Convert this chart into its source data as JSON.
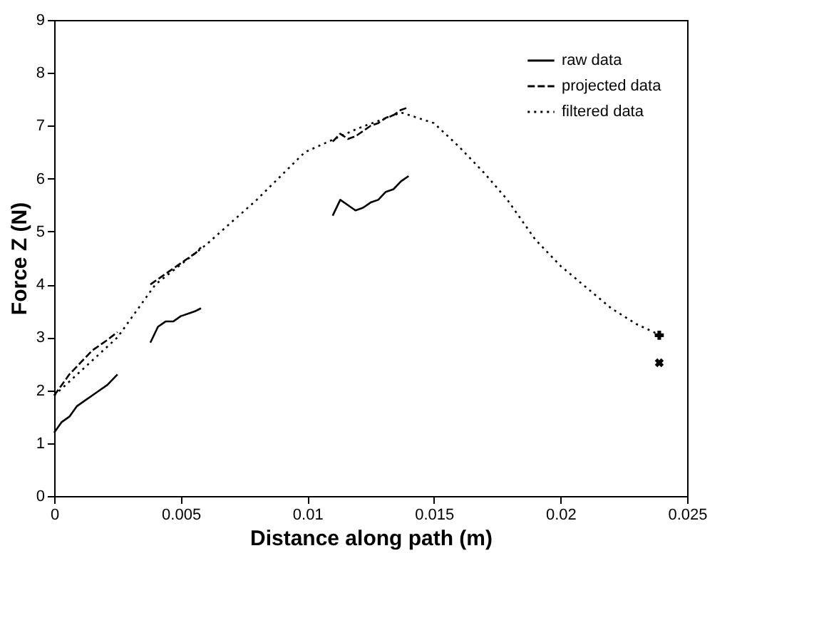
{
  "chart_data": {
    "type": "line",
    "xlabel": "Distance along path (m)",
    "ylabel": "Force Z (N)",
    "xlim": [
      0,
      0.025
    ],
    "ylim": [
      0,
      9
    ],
    "xticks": [
      0,
      0.005,
      0.01,
      0.015,
      0.02,
      0.025
    ],
    "yticks": [
      0,
      1,
      2,
      3,
      4,
      5,
      6,
      7,
      8,
      9
    ],
    "grid": false,
    "legend": "top right",
    "series": [
      {
        "name": "raw data",
        "color": "#000000",
        "line_style": "solid",
        "x": [
          0,
          0.0003,
          0.0006,
          0.0009,
          0.0012,
          0.0015,
          0.0018,
          0.0021,
          0.0025,
          0.003,
          0.0038,
          0.0041,
          0.0044,
          0.0047,
          0.005,
          0.0053,
          0.0056,
          0.0058,
          0.008,
          0.011,
          0.0113,
          0.0116,
          0.0119,
          0.0122,
          0.0125,
          0.0128,
          0.0131,
          0.0134,
          0.0137,
          0.014
        ],
        "values": [
          1.2,
          1.4,
          1.5,
          1.7,
          1.8,
          1.9,
          2.0,
          2.1,
          2.3,
          null,
          2.9,
          3.2,
          3.3,
          3.3,
          3.4,
          3.45,
          3.5,
          3.55,
          null,
          5.3,
          5.6,
          5.5,
          5.4,
          5.45,
          5.55,
          5.6,
          5.75,
          5.8,
          5.95,
          6.05
        ]
      },
      {
        "name": "projected data",
        "color": "#000000",
        "line_style": "dashed",
        "x": [
          0,
          0.0003,
          0.0006,
          0.0009,
          0.0012,
          0.0015,
          0.0018,
          0.0021,
          0.0025,
          0.003,
          0.0038,
          0.0041,
          0.0044,
          0.0047,
          0.005,
          0.0053,
          0.0056,
          0.0058,
          0.008,
          0.011,
          0.0113,
          0.0116,
          0.0119,
          0.0122,
          0.0125,
          0.0128,
          0.0131,
          0.0134,
          0.0137,
          0.014
        ],
        "values": [
          1.9,
          2.1,
          2.3,
          2.45,
          2.6,
          2.75,
          2.85,
          2.95,
          3.1,
          null,
          4.0,
          4.1,
          4.2,
          4.3,
          4.4,
          4.5,
          4.6,
          4.7,
          null,
          6.7,
          6.85,
          6.75,
          6.8,
          6.9,
          7.0,
          7.05,
          7.15,
          7.2,
          7.3,
          7.35
        ]
      },
      {
        "name": "filtered data",
        "color": "#000000",
        "line_style": "dotted",
        "x": [
          0,
          0.0025,
          0.004,
          0.006,
          0.008,
          0.0099,
          0.012,
          0.0137,
          0.015,
          0.016,
          0.017,
          0.0179,
          0.019,
          0.02,
          0.021,
          0.022,
          0.023,
          0.0239
        ],
        "values": [
          1.9,
          3.0,
          4.0,
          4.75,
          5.6,
          6.5,
          6.95,
          7.25,
          7.05,
          6.6,
          6.1,
          5.6,
          4.85,
          4.35,
          3.95,
          3.55,
          3.25,
          3.05
        ]
      },
      {
        "type": "scatter",
        "color": "#000000",
        "marker": "cross",
        "x": [
          0.0239
        ],
        "values": [
          3.04
        ]
      },
      {
        "type": "scatter",
        "color": "#000000",
        "x": [
          0.0239
        ],
        "values": [
          2.52
        ]
      }
    ]
  }
}
